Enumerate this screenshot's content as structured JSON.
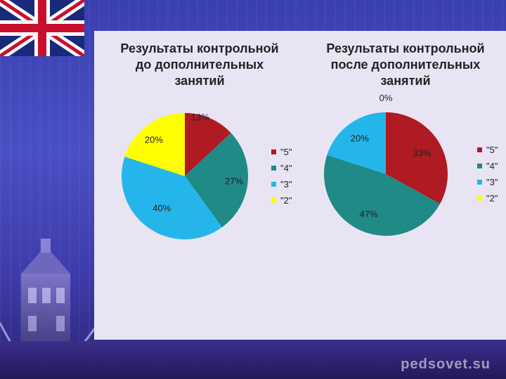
{
  "watermark": "pedsovet.su",
  "chart_data": [
    {
      "type": "pie",
      "title": [
        "Результаты контрольной",
        "до дополнительных",
        "занятий"
      ],
      "categories": [
        "\"5\"",
        "\"4\"",
        "\"3\"",
        "\"2\""
      ],
      "values": [
        13,
        27,
        40,
        20
      ],
      "labels": [
        "13%",
        "27%",
        "40%",
        "20%"
      ],
      "colors": [
        "#b01a22",
        "#1f8a86",
        "#24b6ea",
        "#ffff00"
      ],
      "legend": "right"
    },
    {
      "type": "pie",
      "title": [
        "Результаты контрольной",
        "после дополнительных",
        "занятий"
      ],
      "categories": [
        "\"5\"",
        "\"4\"",
        "\"3\"",
        "\"2\""
      ],
      "values": [
        33,
        47,
        20,
        0
      ],
      "labels": [
        "33%",
        "47%",
        "20%",
        "0%"
      ],
      "colors": [
        "#b01a22",
        "#1f8a86",
        "#24b6ea",
        "#ffff00"
      ],
      "legend": "right"
    }
  ]
}
